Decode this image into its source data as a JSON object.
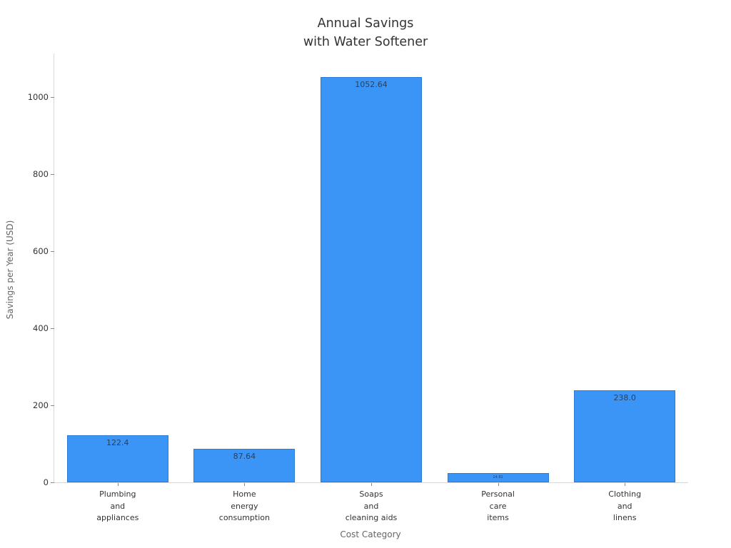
{
  "chart_data": {
    "type": "bar",
    "title": "Annual Savings\nwith Water Softener",
    "xlabel": "Cost Category",
    "ylabel": "Savings per Year (USD)",
    "categories": [
      "Plumbing\nand\nappliances",
      "Home\nenergy\nconsumption",
      "Soaps\nand\ncleaning aids",
      "Personal\ncare\nitems",
      "Clothing\nand\nlinens"
    ],
    "values": [
      122.4,
      87.64,
      1052.64,
      24.81,
      238.0
    ],
    "value_labels": [
      "122.4",
      "87.64",
      "1052.64",
      "24.81",
      "238.0"
    ],
    "yticks": [
      0,
      200,
      400,
      600,
      800,
      1000
    ],
    "ylim": [
      0,
      1113
    ],
    "grid": false,
    "legend": null,
    "bar_width_frac": 0.8,
    "colors": {
      "bar_fill": "#3B95F7",
      "bar_border": "#2B7BD4",
      "bar_value_text": "#2A3F5F",
      "axis_line": "#D9D9D9",
      "tick_mark": "#888888",
      "tick_label": "#333333",
      "axis_title": "#666666",
      "title": "#333333"
    }
  }
}
